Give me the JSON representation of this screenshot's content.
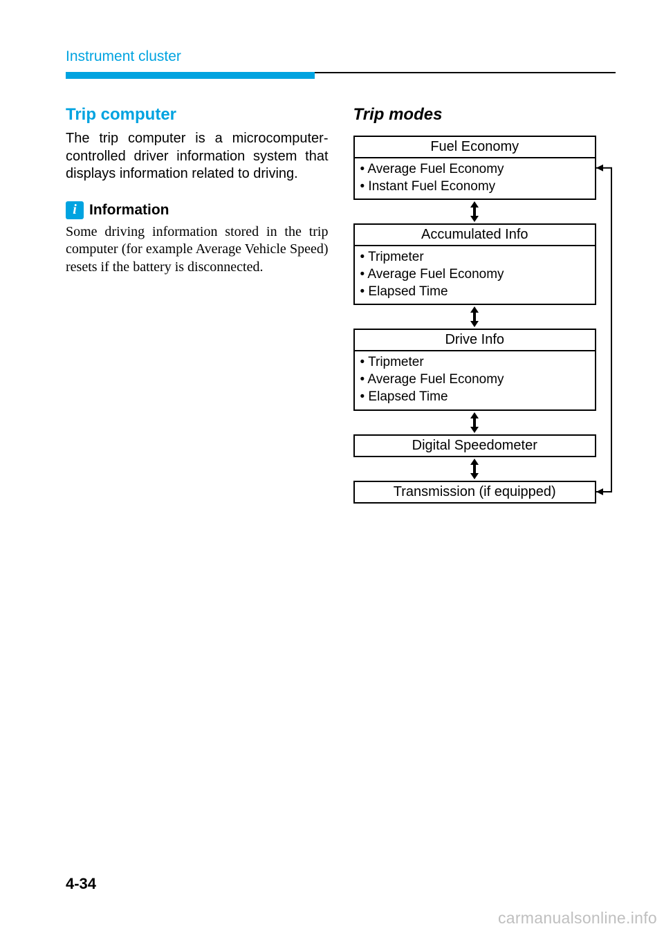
{
  "header": {
    "section": "Instrument cluster",
    "accent_color": "#00a3e0"
  },
  "left": {
    "title": "Trip computer",
    "body": "The trip computer is a microcomput­er-controlled driver information sys­tem that displays information related to driving.",
    "info_icon": "i",
    "info_label": "Information",
    "info_text": "Some driving information stored in the trip computer (for example Average Vehicle Speed) resets if the battery is disconnected."
  },
  "right": {
    "title": "Trip modes",
    "modes": [
      {
        "header": "Fuel Economy",
        "items": [
          "Average Fuel Economy",
          "Instant Fuel Economy"
        ]
      },
      {
        "header": "Accumulated Info",
        "items": [
          "Tripmeter",
          "Average Fuel Economy",
          "Elapsed Time"
        ]
      },
      {
        "header": "Drive Info",
        "items": [
          "Tripmeter",
          "Average Fuel Economy",
          "Elapsed Time"
        ]
      },
      {
        "header": "Digital Speedometer",
        "items": []
      },
      {
        "header": "Transmission (if equipped)",
        "items": []
      }
    ]
  },
  "page_number": "4-34",
  "watermark": "carmanualsonline.info",
  "colors": {
    "accent": "#00a3e0",
    "text": "#000000",
    "watermark": "#bfbfbf",
    "background": "#ffffff"
  }
}
